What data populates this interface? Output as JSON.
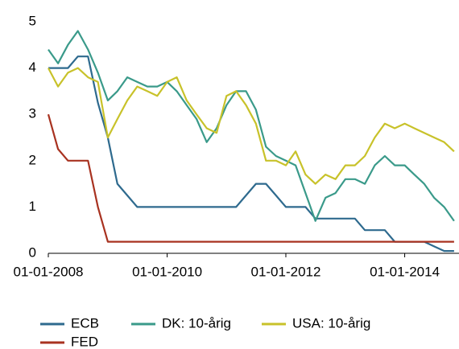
{
  "chart_data": {
    "type": "line",
    "x": [
      "2008-01-01",
      "2008-03-01",
      "2008-05-01",
      "2008-07-01",
      "2008-09-01",
      "2008-11-01",
      "2009-01-01",
      "2009-03-01",
      "2009-05-01",
      "2009-07-01",
      "2009-09-01",
      "2009-11-01",
      "2010-01-01",
      "2010-03-01",
      "2010-05-01",
      "2010-07-01",
      "2010-09-01",
      "2010-11-01",
      "2011-01-01",
      "2011-03-01",
      "2011-05-01",
      "2011-07-01",
      "2011-09-01",
      "2011-11-01",
      "2012-01-01",
      "2012-03-01",
      "2012-05-01",
      "2012-07-01",
      "2012-09-01",
      "2012-11-01",
      "2013-01-01",
      "2013-03-01",
      "2013-05-01",
      "2013-07-01",
      "2013-09-01",
      "2013-11-01",
      "2014-01-01",
      "2014-03-01",
      "2014-05-01",
      "2014-07-01",
      "2014-09-01",
      "2014-11-01"
    ],
    "series": [
      {
        "name": "ECB",
        "color": "#2e6a8e",
        "values": [
          4,
          4,
          4,
          4.25,
          4.25,
          3.25,
          2.5,
          1.5,
          1.25,
          1,
          1,
          1,
          1,
          1,
          1,
          1,
          1,
          1,
          1,
          1,
          1.25,
          1.5,
          1.5,
          1.25,
          1,
          1,
          1,
          0.75,
          0.75,
          0.75,
          0.75,
          0.75,
          0.5,
          0.5,
          0.5,
          0.25,
          0.25,
          0.25,
          0.25,
          0.15,
          0.05,
          0.05
        ]
      },
      {
        "name": "DK: 10-årig",
        "color": "#3a9a8a",
        "values": [
          4.4,
          4.1,
          4.5,
          4.8,
          4.4,
          3.9,
          3.3,
          3.5,
          3.8,
          3.7,
          3.6,
          3.6,
          3.7,
          3.5,
          3.2,
          2.9,
          2.4,
          2.7,
          3.2,
          3.5,
          3.5,
          3.1,
          2.3,
          2.1,
          2.0,
          1.9,
          1.3,
          0.7,
          1.2,
          1.3,
          1.6,
          1.6,
          1.5,
          1.9,
          2.1,
          1.9,
          1.9,
          1.7,
          1.5,
          1.2,
          1.0,
          0.7
        ]
      },
      {
        "name": "USA: 10-årig",
        "color": "#c8c22a",
        "values": [
          4.0,
          3.6,
          3.9,
          4.0,
          3.8,
          3.7,
          2.5,
          2.9,
          3.3,
          3.6,
          3.5,
          3.4,
          3.7,
          3.8,
          3.3,
          3.0,
          2.7,
          2.6,
          3.4,
          3.5,
          3.2,
          2.8,
          2.0,
          2.0,
          1.9,
          2.2,
          1.7,
          1.5,
          1.7,
          1.6,
          1.9,
          1.9,
          2.1,
          2.5,
          2.8,
          2.7,
          2.8,
          2.7,
          2.6,
          2.5,
          2.4,
          2.2
        ]
      },
      {
        "name": "FED",
        "color": "#a83220",
        "values": [
          3,
          2.25,
          2,
          2,
          2,
          1,
          0.25,
          0.25,
          0.25,
          0.25,
          0.25,
          0.25,
          0.25,
          0.25,
          0.25,
          0.25,
          0.25,
          0.25,
          0.25,
          0.25,
          0.25,
          0.25,
          0.25,
          0.25,
          0.25,
          0.25,
          0.25,
          0.25,
          0.25,
          0.25,
          0.25,
          0.25,
          0.25,
          0.25,
          0.25,
          0.25,
          0.25,
          0.25,
          0.25,
          0.25,
          0.25,
          0.25
        ]
      }
    ],
    "xlim": [
      "2008-01-01",
      "2014-12-01"
    ],
    "xticks": [
      {
        "value": "2008-01-01",
        "label": "01-01-2008"
      },
      {
        "value": "2010-01-01",
        "label": "01-01-2010"
      },
      {
        "value": "2012-01-01",
        "label": "01-01-2012"
      },
      {
        "value": "2014-01-01",
        "label": "01-01-2014"
      }
    ],
    "ylim": [
      0,
      5
    ],
    "yticks": [
      0,
      1,
      2,
      3,
      4,
      5
    ],
    "grid": false
  }
}
